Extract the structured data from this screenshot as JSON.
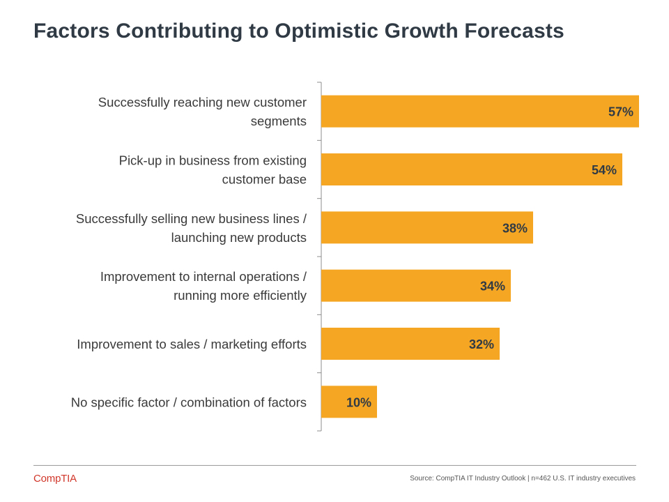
{
  "title": "Factors Contributing to Optimistic Growth Forecasts",
  "chart_data": {
    "type": "bar",
    "orientation": "horizontal",
    "title": "Factors Contributing to Optimistic Growth Forecasts",
    "xlabel": "",
    "ylabel": "",
    "xlim": [
      0,
      57
    ],
    "categories": [
      [
        "Successfully reaching new customer",
        "segments"
      ],
      [
        "Pick-up in business from existing",
        "customer base"
      ],
      [
        "Successfully selling new business lines /",
        "launching new products"
      ],
      [
        "Improvement to internal operations /",
        "running more efficiently"
      ],
      [
        "Improvement to sales / marketing efforts"
      ],
      [
        "No specific factor / combination of factors"
      ]
    ],
    "values": [
      57,
      54,
      38,
      34,
      32,
      10
    ],
    "value_labels": [
      "57%",
      "54%",
      "38%",
      "34%",
      "32%",
      "10%"
    ],
    "bar_color": "#f5a623",
    "grid": false
  },
  "footer": {
    "logo": "CompTIA",
    "source": "Source: CompTIA IT Industry Outlook | n=462 U.S. IT industry executives"
  },
  "colors": {
    "title": "#2f3a45",
    "logo": "#d1362a"
  }
}
